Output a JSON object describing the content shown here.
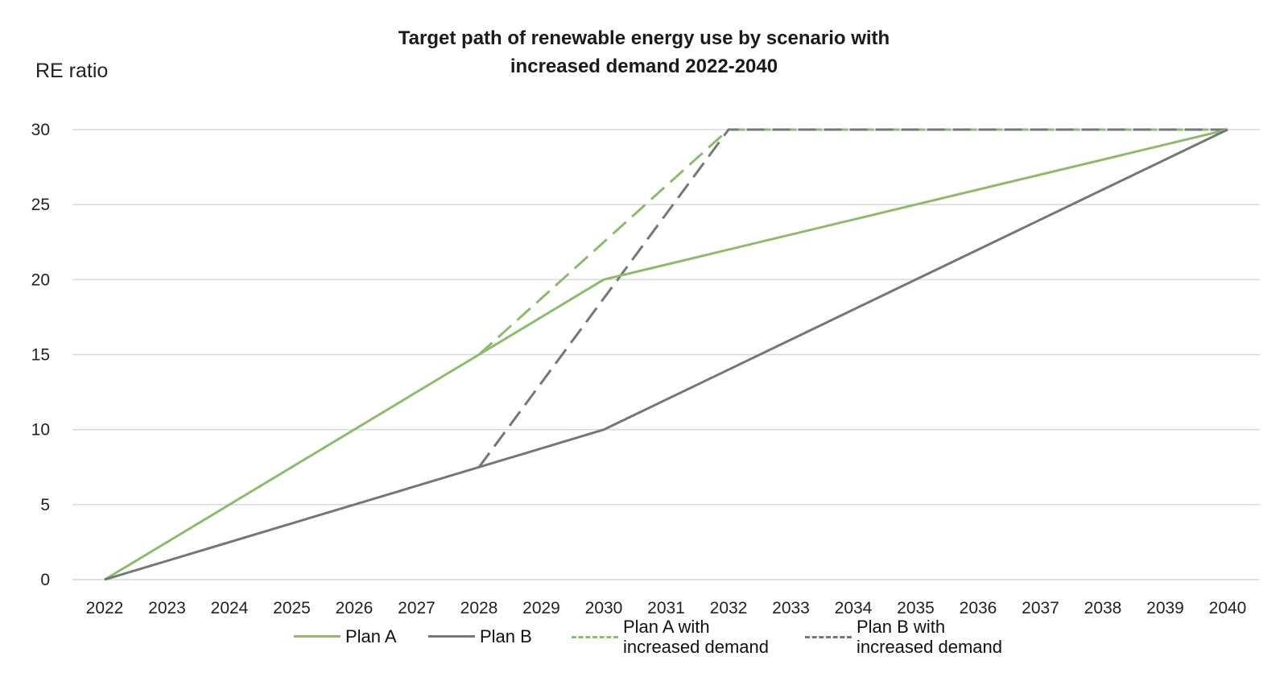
{
  "chart_data": {
    "type": "line",
    "title_line1": "Target path of renewable energy use by scenario with",
    "title_line2": "increased demand 2022-2040",
    "ylabel": "RE ratio",
    "xlabel": "",
    "ylim": [
      0,
      30
    ],
    "yticks": [
      "0",
      "5",
      "10",
      "15",
      "20",
      "25",
      "30"
    ],
    "categories": [
      "2022",
      "2023",
      "2024",
      "2025",
      "2026",
      "2027",
      "2028",
      "2029",
      "2030",
      "2031",
      "2032",
      "2033",
      "2034",
      "2035",
      "2036",
      "2037",
      "2038",
      "2039",
      "2040"
    ],
    "grid": true,
    "legend_position": "bottom",
    "series": [
      {
        "name": "Plan A",
        "color": "#8dba6e",
        "dash": "solid",
        "points": [
          [
            2022,
            0
          ],
          [
            2028,
            15
          ],
          [
            2030,
            20
          ],
          [
            2040,
            30
          ]
        ]
      },
      {
        "name": "Plan B",
        "color": "#6f7a73",
        "dash": "solid",
        "points": [
          [
            2022,
            0
          ],
          [
            2028,
            7.5
          ],
          [
            2030,
            10
          ],
          [
            2040,
            30
          ]
        ]
      },
      {
        "name_line1": "Plan A with",
        "name_line2": "increased demand",
        "color": "#8dba6e",
        "dash": "dashed",
        "points": [
          [
            2028,
            15
          ],
          [
            2032,
            30
          ],
          [
            2040,
            30
          ]
        ]
      },
      {
        "name_line1": "Plan B with",
        "name_line2": "increased demand",
        "color": "#6f7a73",
        "dash": "dashed",
        "points": [
          [
            2028,
            7.5
          ],
          [
            2032,
            30
          ],
          [
            2040,
            30
          ]
        ]
      }
    ]
  }
}
